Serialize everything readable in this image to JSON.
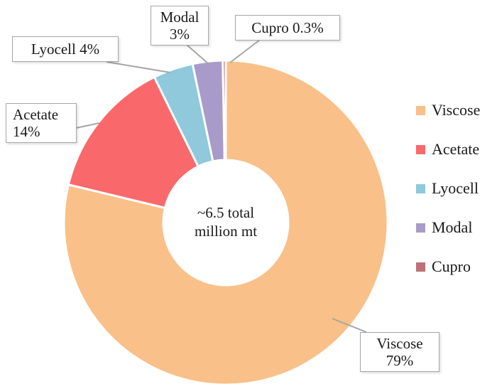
{
  "chart_data": {
    "type": "pie",
    "subtype": "donut",
    "title": "",
    "center_label": {
      "line1": "~6.5 total",
      "line2": "million mt"
    },
    "direction": "clockwise",
    "start_angle_deg": 0,
    "legend_position": "right",
    "series": [
      {
        "name": "Viscose",
        "value": 79,
        "color": "#F9C089",
        "label": "Viscose 79%"
      },
      {
        "name": "Acetate",
        "value": 14,
        "color": "#F9696C",
        "label": "Acetate 14%"
      },
      {
        "name": "Lyocell",
        "value": 4,
        "color": "#8FC9DB",
        "label": "Lyocell 4%"
      },
      {
        "name": "Modal",
        "value": 3,
        "color": "#A99BC9",
        "label": "Modal 3%"
      },
      {
        "name": "Cupro",
        "value": 0.3,
        "color": "#BD7277",
        "label": "Cupro 0.3%"
      }
    ]
  },
  "callouts": {
    "modal": {
      "line1": "Modal",
      "line2": "3%"
    },
    "cupro": {
      "line1": "Cupro 0.3%"
    },
    "lyocell": {
      "line1": "Lyocell 4%"
    },
    "acetate": {
      "line1": "Acetate",
      "line2": "14%"
    },
    "viscose": {
      "line1": "Viscose",
      "line2": "79%"
    }
  }
}
